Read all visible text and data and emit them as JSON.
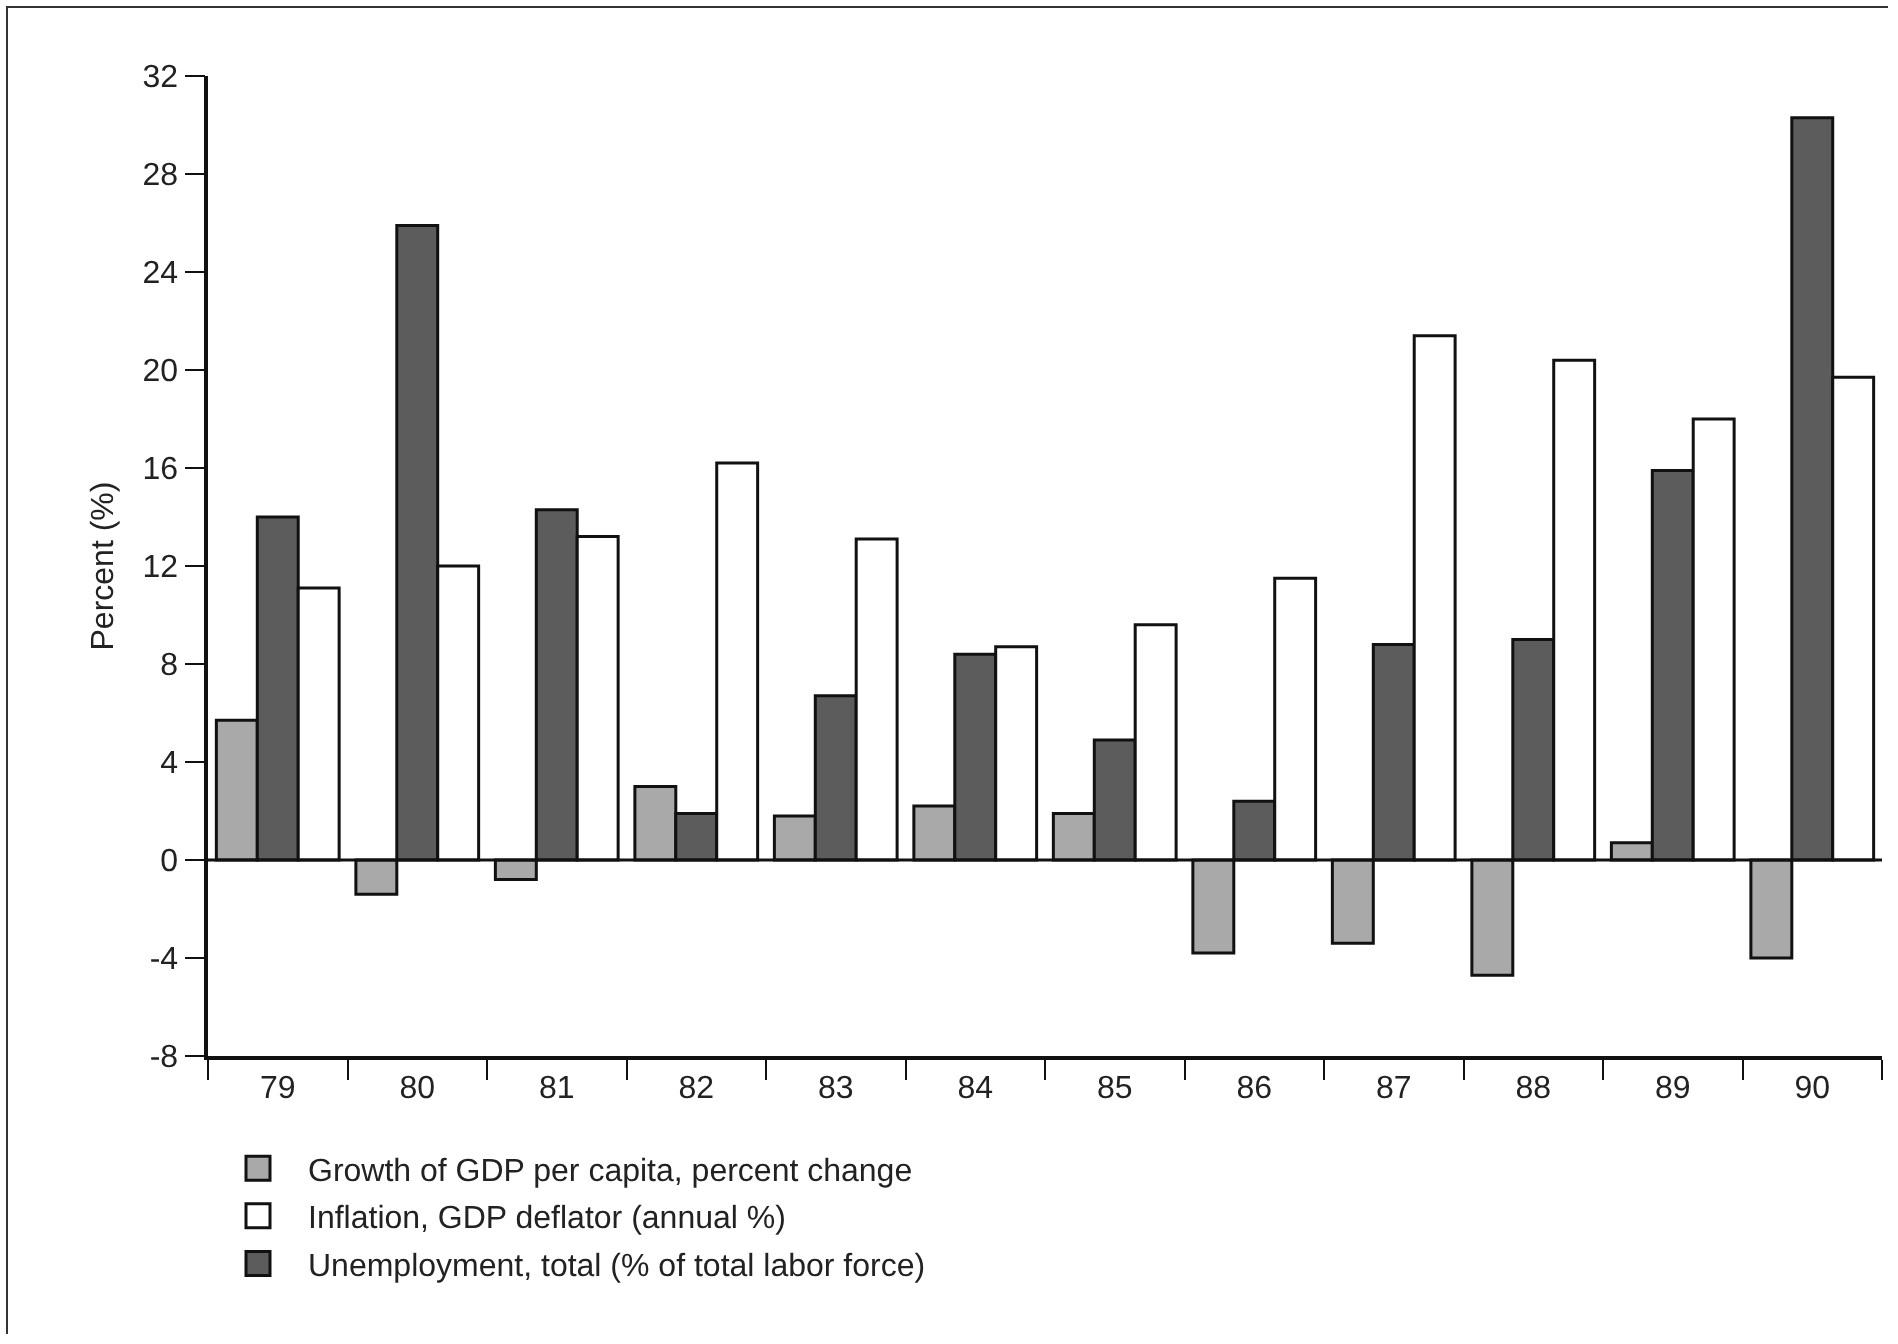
{
  "chart_data": {
    "type": "bar",
    "ylabel": "Percent (%)",
    "categories": [
      "79",
      "80",
      "81",
      "82",
      "83",
      "84",
      "85",
      "86",
      "87",
      "88",
      "89",
      "90"
    ],
    "series": [
      {
        "name": "Growth of GDP per capita, percent change",
        "color": "#a9a9a9",
        "values": [
          5.7,
          -1.4,
          -0.8,
          3.0,
          1.8,
          2.2,
          1.9,
          -3.8,
          -3.4,
          -4.7,
          0.7,
          -4.0
        ]
      },
      {
        "name": "Unemployment, total (% of total labor force)",
        "color": "#5c5c5c",
        "values": [
          14.0,
          25.9,
          14.3,
          1.9,
          6.7,
          8.4,
          4.9,
          2.4,
          8.8,
          9.0,
          15.9,
          30.3
        ]
      },
      {
        "name": "Inflation, GDP deflator (annual %)",
        "color": "#ffffff",
        "values": [
          11.1,
          12.0,
          13.2,
          16.2,
          13.1,
          8.7,
          9.6,
          11.5,
          21.4,
          20.4,
          18.0,
          19.7
        ]
      }
    ],
    "ylim": [
      -8,
      32
    ],
    "yticks": [
      -8,
      -4,
      0,
      4,
      8,
      12,
      16,
      20,
      24,
      28,
      32
    ],
    "ref_lines": [
      {
        "axis": "y",
        "value": 0,
        "color": "#111111"
      }
    ],
    "legend": "bottom"
  }
}
